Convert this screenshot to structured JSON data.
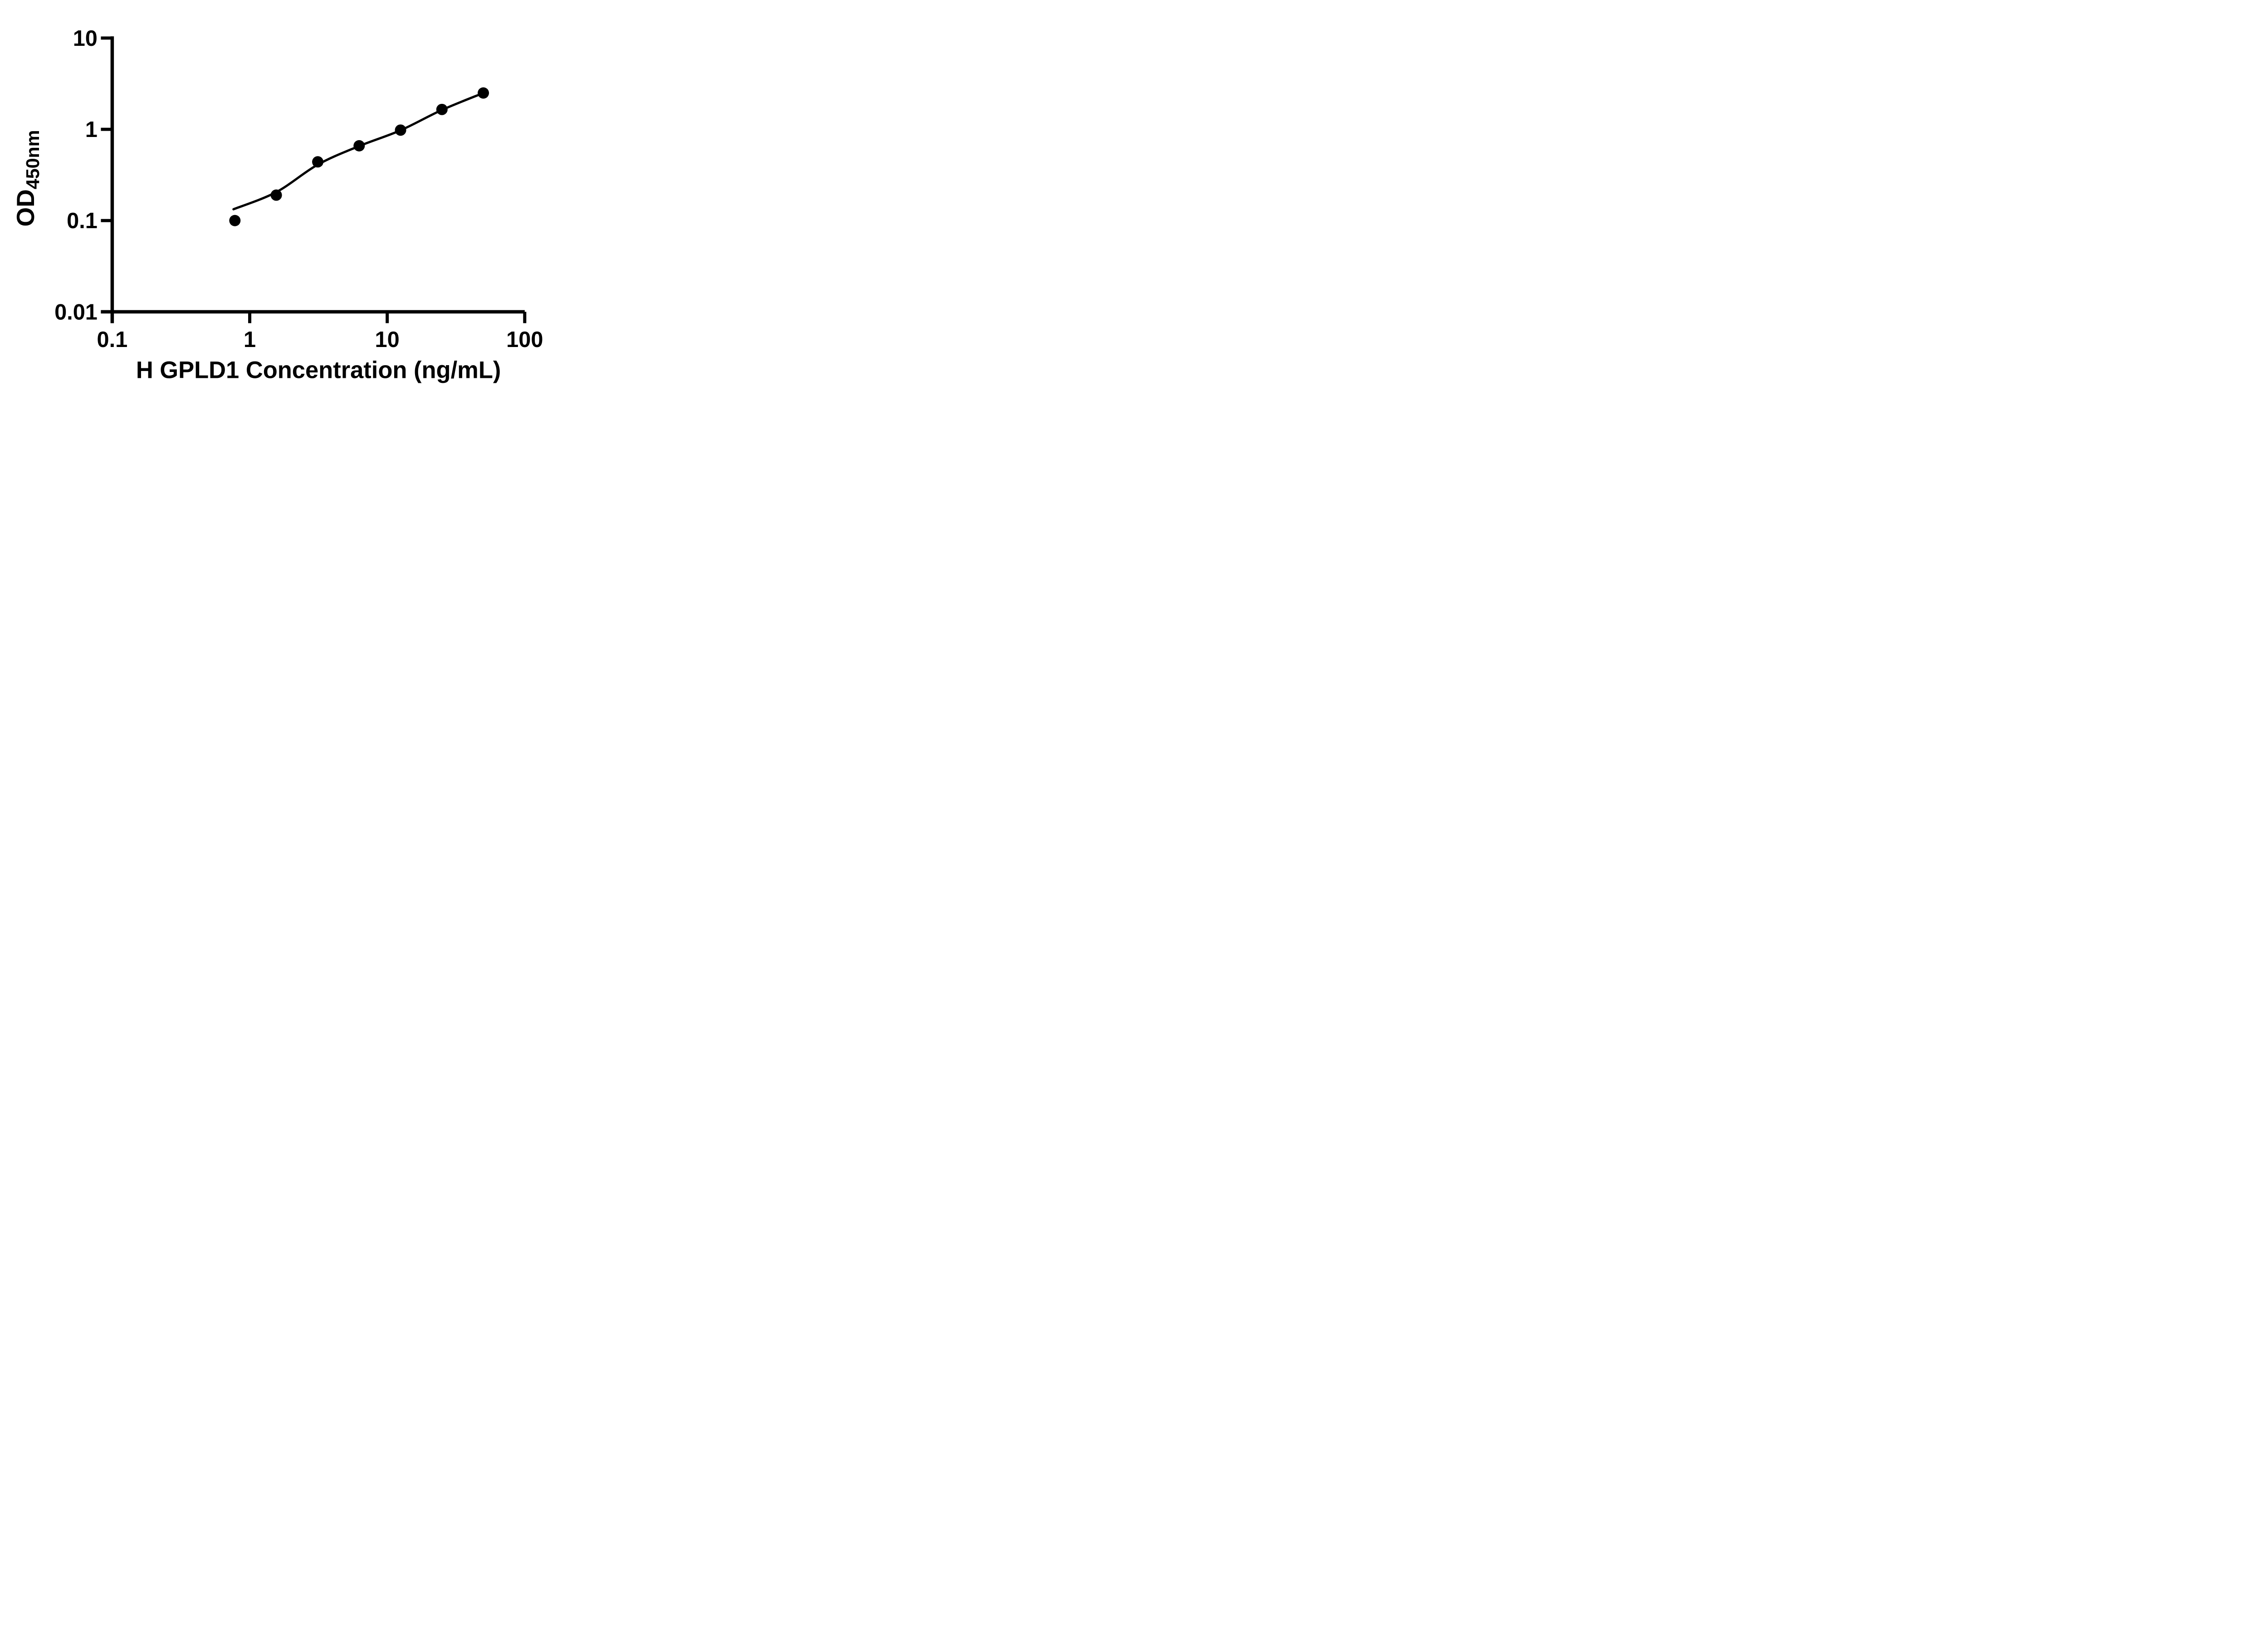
{
  "chart_data": {
    "type": "scatter",
    "title": "",
    "xlabel": "H GPLD1 Concentration (ng/mL)",
    "ylabel": "OD",
    "ylabel_subscript": "450nm",
    "x_scale": "log10",
    "y_scale": "log10",
    "xlim": [
      0.1,
      100
    ],
    "ylim": [
      0.01,
      10
    ],
    "grid": false,
    "legend_position": "none",
    "background_color": "#ffffff",
    "axis_color": "#000000",
    "marker_color": "#000000",
    "line_color": "#000000",
    "x_ticks": [
      {
        "value": 0.1,
        "label": "0.1"
      },
      {
        "value": 1,
        "label": "1"
      },
      {
        "value": 10,
        "label": "10"
      },
      {
        "value": 100,
        "label": "100"
      }
    ],
    "y_ticks": [
      {
        "value": 10,
        "label": "10"
      },
      {
        "value": 1,
        "label": "1"
      },
      {
        "value": 0.1,
        "label": "0.1"
      },
      {
        "value": 0.01,
        "label": "0.01"
      }
    ],
    "series": [
      {
        "name": "standard-points",
        "kind": "scatter",
        "x": [
          0.78,
          1.56,
          3.125,
          6.25,
          12.5,
          25,
          50
        ],
        "y": [
          0.1,
          0.19,
          0.44,
          0.66,
          0.98,
          1.65,
          2.5
        ]
      },
      {
        "name": "fitted-curve",
        "kind": "line",
        "x": [
          0.762,
          1.56,
          3.125,
          6.25,
          12.5,
          25,
          50
        ],
        "y": [
          0.133,
          0.205,
          0.41,
          0.655,
          0.975,
          1.63,
          2.5
        ]
      }
    ]
  }
}
